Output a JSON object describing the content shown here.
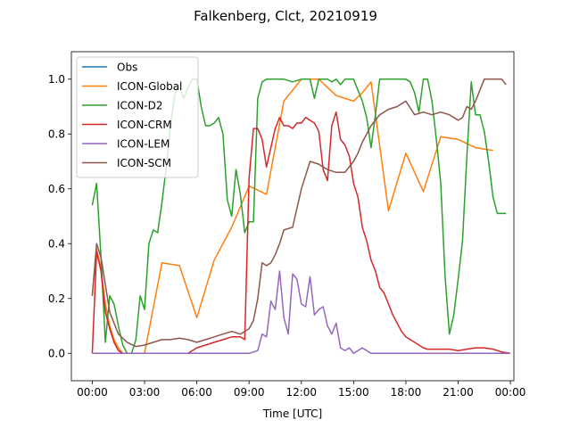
{
  "chart_data": {
    "type": "line",
    "title": "Falkenberg, Clct, 20210919",
    "xlabel": "Time [UTC]",
    "ylabel": "",
    "xlim": [
      -1.2,
      24.2
    ],
    "ylim": [
      -0.1,
      1.1
    ],
    "xticks": [
      0,
      3,
      6,
      9,
      12,
      15,
      18,
      21,
      24
    ],
    "xtick_labels": [
      "00:00",
      "03:00",
      "06:00",
      "09:00",
      "12:00",
      "15:00",
      "18:00",
      "21:00",
      "00:00"
    ],
    "yticks": [
      0.0,
      0.2,
      0.4,
      0.6,
      0.8,
      1.0
    ],
    "ytick_labels": [
      "0.0",
      "0.2",
      "0.4",
      "0.6",
      "0.8",
      "1.0"
    ],
    "legend_position": "top-left",
    "series": [
      {
        "name": "Obs",
        "color": "#1f77b4",
        "x": [],
        "y": []
      },
      {
        "name": "ICON-Global",
        "color": "#ff7f0e",
        "x": [
          0,
          0.25,
          0.5,
          0.75,
          1,
          1.25,
          1.5,
          1.75,
          2,
          2.25,
          2.5,
          2.75,
          3,
          4,
          5,
          6,
          7,
          8,
          9,
          10,
          11,
          12,
          13,
          14,
          15,
          15.5,
          16,
          17,
          18,
          19,
          20,
          21,
          22,
          23
        ],
        "y": [
          0.21,
          0.38,
          0.31,
          0.18,
          0.1,
          0.05,
          0.02,
          0.0,
          0.0,
          0.0,
          0.0,
          0.0,
          0.0,
          0.33,
          0.32,
          0.13,
          0.34,
          0.46,
          0.61,
          0.58,
          0.92,
          1.0,
          1.0,
          0.94,
          0.92,
          0.95,
          0.99,
          0.52,
          0.73,
          0.59,
          0.79,
          0.78,
          0.75,
          0.74
        ]
      },
      {
        "name": "ICON-D2",
        "color": "#2ca02c",
        "x": [
          0,
          0.25,
          0.5,
          0.75,
          1,
          1.25,
          1.5,
          1.75,
          2,
          2.25,
          2.5,
          2.75,
          3,
          3.25,
          3.5,
          3.75,
          4,
          4.25,
          4.5,
          4.75,
          5,
          5.25,
          5.5,
          5.75,
          6,
          6.25,
          6.5,
          6.75,
          7,
          7.25,
          7.5,
          7.75,
          8,
          8.25,
          8.5,
          8.75,
          9,
          9.25,
          9.5,
          9.75,
          10,
          10.5,
          11,
          11.5,
          12,
          12.25,
          12.5,
          12.75,
          13,
          13.25,
          13.5,
          13.75,
          14,
          14.25,
          14.5,
          14.75,
          15,
          15.25,
          15.5,
          15.75,
          16,
          16.25,
          16.5,
          16.75,
          17,
          17.25,
          17.5,
          17.75,
          18,
          18.25,
          18.5,
          18.75,
          19,
          19.25,
          19.5,
          19.75,
          20,
          20.25,
          20.5,
          20.75,
          21,
          21.25,
          21.5,
          21.75,
          22,
          22.25,
          22.5,
          22.75,
          23,
          23.25,
          23.5,
          23.75
        ],
        "y": [
          0.54,
          0.62,
          0.35,
          0.04,
          0.21,
          0.18,
          0.1,
          0.03,
          0.0,
          0.0,
          0.05,
          0.21,
          0.16,
          0.4,
          0.45,
          0.44,
          0.55,
          0.68,
          0.84,
          0.95,
          0.97,
          0.93,
          0.97,
          1.0,
          1.0,
          0.9,
          0.83,
          0.83,
          0.84,
          0.86,
          0.8,
          0.56,
          0.5,
          0.67,
          0.58,
          0.44,
          0.48,
          0.48,
          0.93,
          0.99,
          1.0,
          1.0,
          1.0,
          0.99,
          1.0,
          1.0,
          1.0,
          0.93,
          1.0,
          1.0,
          1.0,
          0.99,
          1.0,
          0.98,
          1.0,
          1.0,
          1.0,
          0.96,
          0.92,
          0.86,
          0.75,
          0.87,
          1.0,
          1.0,
          1.0,
          1.0,
          1.0,
          1.0,
          1.0,
          0.99,
          0.95,
          0.88,
          1.0,
          1.0,
          0.92,
          0.78,
          0.62,
          0.28,
          0.07,
          0.14,
          0.27,
          0.41,
          0.72,
          0.99,
          0.87,
          0.87,
          0.81,
          0.7,
          0.57,
          0.51,
          0.51,
          0.51
        ]
      },
      {
        "name": "ICON-CRM",
        "color": "#d62728",
        "x": [
          0,
          0.25,
          0.5,
          0.75,
          1,
          1.25,
          1.5,
          1.75,
          2,
          2.25,
          2.5,
          3,
          4,
          5,
          5.5,
          6,
          6.5,
          7,
          7.5,
          8,
          8.5,
          8.75,
          9,
          9.25,
          9.5,
          9.75,
          10,
          10.25,
          10.5,
          10.75,
          11,
          11.25,
          11.5,
          11.75,
          12,
          12.25,
          12.5,
          12.75,
          13,
          13.25,
          13.5,
          13.75,
          14,
          14.25,
          14.5,
          14.75,
          15,
          15.25,
          15.5,
          15.75,
          16,
          16.25,
          16.5,
          16.75,
          17,
          17.25,
          17.5,
          17.75,
          18,
          18.25,
          18.5,
          18.75,
          19,
          19.25,
          19.5,
          20,
          20.5,
          21,
          21.5,
          22,
          22.5,
          23,
          23.5,
          24
        ],
        "y": [
          0.0,
          0.37,
          0.3,
          0.15,
          0.09,
          0.04,
          0.01,
          0.0,
          0.0,
          0.0,
          0.0,
          0.0,
          0.0,
          0.0,
          0.0,
          0.02,
          0.03,
          0.04,
          0.05,
          0.06,
          0.06,
          0.05,
          0.64,
          0.82,
          0.82,
          0.78,
          0.68,
          0.75,
          0.82,
          0.86,
          0.83,
          0.83,
          0.82,
          0.84,
          0.84,
          0.86,
          0.85,
          0.84,
          0.81,
          0.67,
          0.63,
          0.83,
          0.88,
          0.78,
          0.76,
          0.72,
          0.62,
          0.57,
          0.46,
          0.41,
          0.34,
          0.3,
          0.24,
          0.22,
          0.18,
          0.14,
          0.11,
          0.08,
          0.06,
          0.05,
          0.04,
          0.03,
          0.02,
          0.015,
          0.015,
          0.015,
          0.015,
          0.01,
          0.015,
          0.02,
          0.02,
          0.015,
          0.005,
          0.0
        ]
      },
      {
        "name": "ICON-LEM",
        "color": "#9467bd",
        "x": [
          0,
          1,
          2,
          3,
          4,
          5,
          6,
          7,
          8,
          9,
          9.5,
          9.75,
          10,
          10.25,
          10.5,
          10.75,
          11,
          11.25,
          11.5,
          11.75,
          12,
          12.25,
          12.5,
          12.75,
          13,
          13.25,
          13.5,
          13.75,
          14,
          14.25,
          14.5,
          14.75,
          15,
          15.5,
          16,
          17,
          18,
          19,
          20,
          21,
          22,
          23,
          24
        ],
        "y": [
          0.0,
          0.0,
          0.0,
          0.0,
          0.0,
          0.0,
          0.0,
          0.0,
          0.0,
          0.0,
          0.01,
          0.07,
          0.06,
          0.19,
          0.16,
          0.3,
          0.13,
          0.07,
          0.29,
          0.27,
          0.18,
          0.17,
          0.28,
          0.14,
          0.16,
          0.17,
          0.1,
          0.07,
          0.11,
          0.02,
          0.01,
          0.02,
          0.0,
          0.02,
          0.0,
          0.0,
          0.0,
          0.0,
          0.0,
          0.0,
          0.0,
          0.0,
          0.0
        ]
      },
      {
        "name": "ICON-SCM",
        "color": "#8c564b",
        "x": [
          0,
          0.25,
          0.5,
          0.75,
          1,
          1.5,
          2,
          2.5,
          3,
          3.5,
          4,
          4.5,
          5,
          5.5,
          6,
          6.5,
          7,
          7.5,
          8,
          8.5,
          9,
          9.25,
          9.5,
          9.75,
          10,
          10.25,
          10.5,
          10.75,
          11,
          11.5,
          12,
          12.5,
          13,
          13.25,
          13.5,
          14,
          14.5,
          15,
          15.25,
          15.5,
          15.75,
          16,
          16.25,
          16.5,
          16.75,
          17,
          17.5,
          18,
          18.5,
          19,
          19.5,
          20,
          20.5,
          21,
          21.25,
          21.5,
          21.75,
          22,
          22.5,
          23,
          23.5,
          23.75
        ],
        "y": [
          0.21,
          0.4,
          0.35,
          0.25,
          0.15,
          0.07,
          0.04,
          0.025,
          0.03,
          0.04,
          0.05,
          0.05,
          0.055,
          0.05,
          0.04,
          0.05,
          0.06,
          0.07,
          0.08,
          0.07,
          0.09,
          0.12,
          0.2,
          0.33,
          0.32,
          0.33,
          0.36,
          0.4,
          0.45,
          0.46,
          0.6,
          0.7,
          0.69,
          0.68,
          0.67,
          0.66,
          0.66,
          0.7,
          0.73,
          0.77,
          0.8,
          0.83,
          0.85,
          0.87,
          0.88,
          0.89,
          0.9,
          0.92,
          0.87,
          0.88,
          0.87,
          0.88,
          0.87,
          0.85,
          0.86,
          0.9,
          0.89,
          0.92,
          1.0,
          1.0,
          1.0,
          0.98
        ]
      }
    ]
  }
}
